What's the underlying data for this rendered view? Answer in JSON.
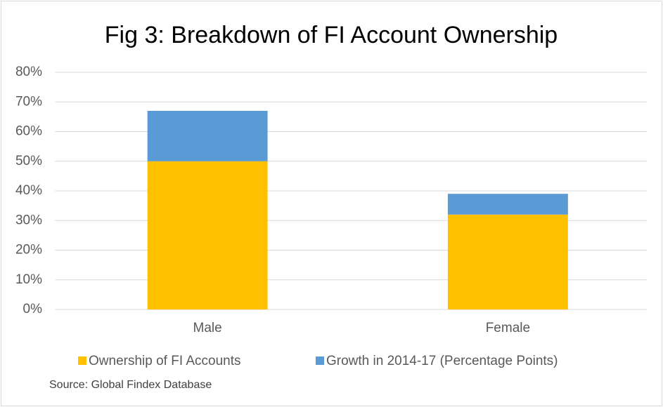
{
  "chart_data": {
    "type": "stacked_bar",
    "title": "Fig 3: Breakdown of FI Account Ownership",
    "categories": [
      "Male",
      "Female"
    ],
    "series": [
      {
        "name": "Ownership of FI Accounts",
        "color": "#FFC000",
        "values": [
          50,
          32
        ]
      },
      {
        "name": "Growth in 2014-17 (Percentage Points)",
        "color": "#5B9BD5",
        "values": [
          17,
          7
        ]
      }
    ],
    "ylim": [
      0,
      80
    ],
    "yticks": [
      {
        "value": 0,
        "label": "0%"
      },
      {
        "value": 10,
        "label": "10%"
      },
      {
        "value": 20,
        "label": "20%"
      },
      {
        "value": 30,
        "label": "30%"
      },
      {
        "value": 40,
        "label": "40%"
      },
      {
        "value": 50,
        "label": "50%"
      },
      {
        "value": 60,
        "label": "60%"
      },
      {
        "value": 70,
        "label": "70%"
      },
      {
        "value": 80,
        "label": "80%"
      }
    ],
    "grid": true,
    "legend": "bottom",
    "source": "Source: Global Findex Database"
  }
}
